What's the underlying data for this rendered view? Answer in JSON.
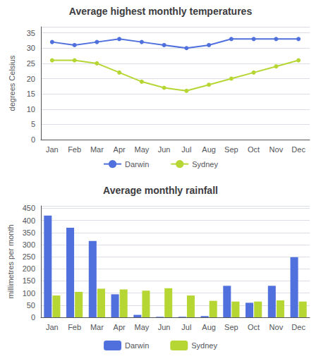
{
  "chart_data": [
    {
      "type": "line",
      "title": "Average highest monthly temperatures",
      "ylabel": "degrees Celsius",
      "categories": [
        "Jan",
        "Feb",
        "Mar",
        "Apr",
        "May",
        "Jun",
        "Jul",
        "Aug",
        "Sep",
        "Oct",
        "Nov",
        "Dec"
      ],
      "series": [
        {
          "name": "Darwin",
          "values": [
            32,
            31,
            32,
            33,
            32,
            31,
            30,
            31,
            33,
            33,
            33,
            33
          ]
        },
        {
          "name": "Sydney",
          "values": [
            26,
            26,
            25,
            22,
            19,
            17,
            16,
            18,
            20,
            22,
            24,
            26
          ]
        }
      ],
      "ylim": [
        0,
        37
      ],
      "yticks": [
        0,
        5,
        10,
        15,
        20,
        25,
        30,
        35
      ],
      "grid": true,
      "legend": "bottom",
      "marker": "circle"
    },
    {
      "type": "bar",
      "title": "Average monthly rainfall",
      "ylabel": "millimetres per month",
      "categories": [
        "Jan",
        "Feb",
        "Mar",
        "Apr",
        "May",
        "Jun",
        "Jul",
        "Aug",
        "Sep",
        "Oct",
        "Nov",
        "Dec"
      ],
      "series": [
        {
          "name": "Darwin",
          "values": [
            420,
            370,
            315,
            95,
            10,
            2,
            2,
            5,
            130,
            60,
            130,
            248
          ]
        },
        {
          "name": "Sydney",
          "values": [
            90,
            105,
            118,
            115,
            110,
            120,
            90,
            68,
            65,
            65,
            70,
            65
          ]
        }
      ],
      "ylim": [
        0,
        460
      ],
      "yticks": [
        0,
        50,
        100,
        150,
        200,
        250,
        300,
        350,
        400,
        450
      ],
      "grid": true,
      "legend": "bottom"
    }
  ]
}
